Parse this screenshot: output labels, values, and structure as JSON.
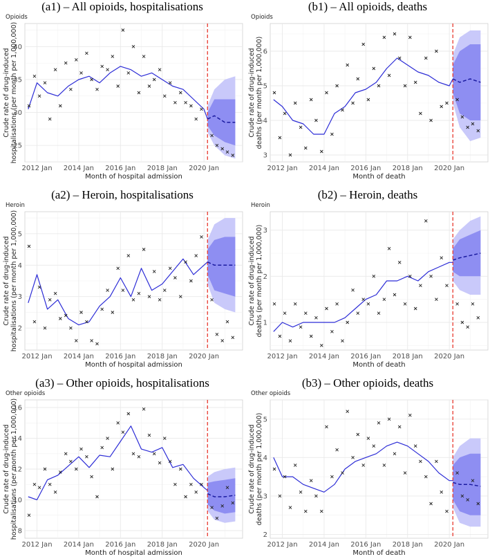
{
  "chart_data": [
    {
      "type": "line",
      "title": "(a1) – All opioids, hospitalisations",
      "subtitle": "Opioids",
      "xlabel": "Month of hospital admission",
      "ylabel": [
        "Crude rate of drug-induced",
        "hospitalisations (per month per 1,000,000)"
      ],
      "xlim": [
        2011.42,
        2021.85
      ],
      "ylim": [
        22.5,
        43.5
      ],
      "xticks": [
        2012,
        2014,
        2016,
        2018,
        2020
      ],
      "xtick_labels": [
        "2012 Jan",
        "2014 Jan",
        "2016 Jan",
        "2018 Jan",
        "2020 Jan"
      ],
      "yticks": [
        25,
        30,
        35,
        40
      ],
      "intervention_x": 2020.17,
      "fit_x": [
        2011.58,
        2012.0,
        2012.5,
        2013.0,
        2013.5,
        2014.0,
        2014.5,
        2015.0,
        2015.5,
        2016.0,
        2016.5,
        2017.0,
        2017.5,
        2018.0,
        2018.5,
        2019.0,
        2019.5,
        2020.0,
        2020.17
      ],
      "fit_y": [
        30.5,
        34.5,
        33.0,
        32.5,
        34.0,
        35.0,
        35.5,
        34.5,
        36.0,
        37.0,
        36.5,
        35.5,
        36.0,
        35.0,
        34.0,
        33.5,
        32.0,
        30.5,
        29.0
      ],
      "forecast_x": [
        2020.17,
        2020.5,
        2021.0,
        2021.5
      ],
      "forecast_y": [
        29.0,
        29.5,
        28.5,
        28.5
      ],
      "pi95_lower": [
        27.0,
        25.0,
        23.5,
        23.0
      ],
      "pi95_upper": [
        31.0,
        33.5,
        35.0,
        35.5
      ],
      "pi80_lower": [
        28.0,
        26.5,
        25.5,
        25.0
      ],
      "pi80_upper": [
        30.0,
        32.0,
        32.0,
        32.0
      ],
      "obs_x": [
        2011.62,
        2011.88,
        2012.12,
        2012.38,
        2012.62,
        2012.88,
        2013.12,
        2013.38,
        2013.62,
        2013.88,
        2014.12,
        2014.38,
        2014.62,
        2014.88,
        2015.12,
        2015.38,
        2015.62,
        2015.88,
        2016.12,
        2016.38,
        2016.62,
        2016.88,
        2017.12,
        2017.38,
        2017.62,
        2017.88,
        2018.12,
        2018.38,
        2018.62,
        2018.88,
        2019.12,
        2019.38,
        2019.62,
        2019.88,
        2020.38,
        2020.62,
        2020.88,
        2021.12,
        2021.38
      ],
      "obs_y": [
        31.0,
        35.5,
        32.5,
        34.5,
        29.0,
        36.5,
        31.0,
        37.5,
        33.5,
        38.0,
        36.0,
        39.0,
        35.0,
        33.5,
        37.0,
        36.5,
        38.5,
        34.0,
        42.5,
        36.0,
        40.0,
        33.0,
        38.5,
        34.0,
        35.0,
        36.5,
        32.5,
        34.5,
        31.5,
        33.0,
        31.5,
        31.0,
        29.0,
        30.5,
        26.5,
        25.0,
        24.5,
        24.0,
        23.5
      ],
      "colors": {
        "fit": "#2b2bd6",
        "pi80": "#8e8ef2",
        "pi95": "#c9c9fa",
        "vline": "#e8382d",
        "obs": "#222222",
        "grid": "#e9e9e9"
      }
    },
    {
      "type": "line",
      "title": "(b1) – All opioids, deaths",
      "subtitle": "Opioids",
      "xlabel": "Month of death",
      "ylabel": [
        "Crude rate of drug-induced",
        "deaths (per month per 1,000,000)"
      ],
      "xlim": [
        2011.42,
        2021.85
      ],
      "ylim": [
        2.8,
        6.8
      ],
      "xticks": [
        2012,
        2014,
        2016,
        2018,
        2020
      ],
      "xtick_labels": [
        "2012 Jan",
        "2014 Jan",
        "2016 Jan",
        "2018 Jan",
        "2020 Jan"
      ],
      "yticks": [
        3,
        4,
        5,
        6
      ],
      "intervention_x": 2020.17,
      "fit_x": [
        2011.58,
        2012.0,
        2012.5,
        2013.0,
        2013.5,
        2014.0,
        2014.5,
        2015.0,
        2015.5,
        2016.0,
        2016.5,
        2017.0,
        2017.5,
        2018.0,
        2018.5,
        2019.0,
        2019.5,
        2020.0,
        2020.17
      ],
      "fit_y": [
        4.6,
        4.4,
        4.0,
        3.9,
        3.6,
        3.6,
        4.2,
        4.4,
        4.8,
        4.9,
        5.1,
        5.5,
        5.8,
        5.6,
        5.4,
        5.3,
        5.1,
        5.0,
        5.2
      ],
      "forecast_x": [
        2020.17,
        2020.5,
        2021.0,
        2021.5
      ],
      "forecast_y": [
        5.2,
        5.1,
        5.2,
        5.1
      ],
      "pi95_lower": [
        4.5,
        3.8,
        3.4,
        3.5
      ],
      "pi95_upper": [
        5.9,
        6.4,
        6.6,
        6.6
      ],
      "pi80_lower": [
        4.8,
        4.2,
        4.0,
        4.0
      ],
      "pi80_upper": [
        5.6,
        6.0,
        6.2,
        6.2
      ],
      "obs_x": [
        2011.62,
        2011.88,
        2012.12,
        2012.38,
        2012.62,
        2012.88,
        2013.12,
        2013.38,
        2013.62,
        2013.88,
        2014.12,
        2014.38,
        2014.62,
        2014.88,
        2015.12,
        2015.38,
        2015.62,
        2015.88,
        2016.12,
        2016.38,
        2016.62,
        2016.88,
        2017.12,
        2017.38,
        2017.62,
        2017.88,
        2018.12,
        2018.38,
        2018.62,
        2018.88,
        2019.12,
        2019.38,
        2019.62,
        2019.88,
        2020.38,
        2020.62,
        2020.88,
        2021.12,
        2021.38
      ],
      "obs_y": [
        4.8,
        3.5,
        4.2,
        3.0,
        4.5,
        3.8,
        3.2,
        4.6,
        4.0,
        3.1,
        4.8,
        3.6,
        5.0,
        4.3,
        5.6,
        4.5,
        5.2,
        6.2,
        4.6,
        5.5,
        5.0,
        6.4,
        5.3,
        6.5,
        5.8,
        5.0,
        6.4,
        5.1,
        4.2,
        5.8,
        4.0,
        6.0,
        4.4,
        4.5,
        4.6,
        4.1,
        3.8,
        3.9,
        3.7
      ],
      "colors": {
        "fit": "#2b2bd6",
        "pi80": "#8e8ef2",
        "pi95": "#c9c9fa",
        "vline": "#e8382d",
        "obs": "#222222",
        "grid": "#e9e9e9"
      }
    },
    {
      "type": "line",
      "title": "(a2) – Heroin, hospitalisations",
      "subtitle": "Heroin",
      "xlabel": "Month of hospital admission",
      "ylabel": [
        "Crude rate of drug-induced",
        "hospitalisations (per month per 1,000,000)"
      ],
      "xlim": [
        2011.42,
        2021.85
      ],
      "ylim": [
        1.3,
        5.7
      ],
      "xticks": [
        2012,
        2014,
        2016,
        2018,
        2020
      ],
      "xtick_labels": [
        "2012 Jan",
        "2014 Jan",
        "2016 Jan",
        "2018 Jan",
        "2020 Jan"
      ],
      "yticks": [
        2,
        3,
        4,
        5
      ],
      "intervention_x": 2020.17,
      "fit_x": [
        2011.58,
        2012.0,
        2012.5,
        2013.0,
        2013.5,
        2014.0,
        2014.5,
        2015.0,
        2015.5,
        2016.0,
        2016.5,
        2017.0,
        2017.5,
        2018.0,
        2018.5,
        2019.0,
        2019.5,
        2020.0,
        2020.17
      ],
      "fit_y": [
        2.8,
        3.7,
        2.6,
        2.9,
        2.3,
        2.1,
        2.2,
        2.7,
        3.0,
        3.6,
        3.0,
        3.9,
        3.2,
        3.4,
        3.8,
        4.2,
        3.7,
        4.0,
        4.1
      ],
      "forecast_x": [
        2020.17,
        2020.5,
        2021.0,
        2021.5
      ],
      "forecast_y": [
        4.1,
        4.0,
        4.0,
        4.0
      ],
      "pi95_lower": [
        3.4,
        2.8,
        2.6,
        2.5
      ],
      "pi95_upper": [
        4.8,
        5.3,
        5.5,
        5.5
      ],
      "pi80_lower": [
        3.7,
        3.2,
        3.1,
        3.0
      ],
      "pi80_upper": [
        4.5,
        4.8,
        4.9,
        4.9
      ],
      "obs_x": [
        2011.62,
        2011.88,
        2012.12,
        2012.38,
        2012.62,
        2012.88,
        2013.12,
        2013.38,
        2013.62,
        2013.88,
        2014.12,
        2014.38,
        2014.62,
        2014.88,
        2015.12,
        2015.38,
        2015.62,
        2015.88,
        2016.12,
        2016.38,
        2016.62,
        2016.88,
        2017.12,
        2017.38,
        2017.62,
        2017.88,
        2018.12,
        2018.38,
        2018.62,
        2018.88,
        2019.12,
        2019.38,
        2019.62,
        2019.88,
        2020.38,
        2020.62,
        2020.88,
        2021.12,
        2021.38
      ],
      "obs_y": [
        4.6,
        2.2,
        3.3,
        2.0,
        2.9,
        3.1,
        2.3,
        2.4,
        2.0,
        1.6,
        2.5,
        2.2,
        1.6,
        1.5,
        2.6,
        3.2,
        2.5,
        3.9,
        3.2,
        4.3,
        2.9,
        3.1,
        4.5,
        3.0,
        3.8,
        2.9,
        3.2,
        3.9,
        3.6,
        3.0,
        4.1,
        3.5,
        4.3,
        4.9,
        2.9,
        1.8,
        1.6,
        2.2,
        1.7
      ],
      "colors": {
        "fit": "#2b2bd6",
        "pi80": "#8e8ef2",
        "pi95": "#c9c9fa",
        "vline": "#e8382d",
        "obs": "#222222",
        "grid": "#e9e9e9"
      }
    },
    {
      "type": "line",
      "title": "(b2) – Heroin, deaths",
      "subtitle": "Heroin",
      "xlabel": "Month of death",
      "ylabel": [
        "Crude rate of drug-induced",
        "deaths (per month per 1,000,000)"
      ],
      "xlim": [
        2011.42,
        2021.85
      ],
      "ylim": [
        0.4,
        3.4
      ],
      "xticks": [
        2012,
        2014,
        2016,
        2018,
        2020
      ],
      "xtick_labels": [
        "2012 Jan",
        "2014 Jan",
        "2016 Jan",
        "2018 Jan",
        "2020 Jan"
      ],
      "yticks": [
        1,
        2,
        3
      ],
      "intervention_x": 2020.17,
      "fit_x": [
        2011.58,
        2012.0,
        2012.5,
        2013.0,
        2013.5,
        2014.0,
        2014.5,
        2015.0,
        2015.5,
        2016.0,
        2016.5,
        2017.0,
        2017.5,
        2018.0,
        2018.5,
        2019.0,
        2019.5,
        2020.0,
        2020.17
      ],
      "fit_y": [
        0.8,
        1.0,
        0.9,
        1.0,
        1.0,
        1.0,
        1.0,
        1.1,
        1.3,
        1.5,
        1.6,
        1.9,
        1.9,
        2.0,
        1.9,
        2.1,
        2.2,
        2.3,
        2.3
      ],
      "forecast_x": [
        2020.17,
        2020.5,
        2021.0,
        2021.5
      ],
      "forecast_y": [
        2.35,
        2.4,
        2.45,
        2.5
      ],
      "pi95_lower": [
        1.9,
        1.7,
        1.6,
        1.6
      ],
      "pi95_upper": [
        2.8,
        3.0,
        3.2,
        3.3
      ],
      "pi80_lower": [
        2.1,
        2.0,
        2.0,
        2.0
      ],
      "pi80_upper": [
        2.6,
        2.8,
        2.9,
        3.0
      ],
      "obs_x": [
        2011.62,
        2011.88,
        2012.12,
        2012.38,
        2012.62,
        2012.88,
        2013.12,
        2013.38,
        2013.62,
        2013.88,
        2014.12,
        2014.38,
        2014.62,
        2014.88,
        2015.12,
        2015.38,
        2015.62,
        2015.88,
        2016.12,
        2016.38,
        2016.62,
        2016.88,
        2017.12,
        2017.38,
        2017.62,
        2017.88,
        2018.12,
        2018.38,
        2018.62,
        2018.88,
        2019.12,
        2019.38,
        2019.62,
        2019.88,
        2020.38,
        2020.62,
        2020.88,
        2021.12,
        2021.38
      ],
      "obs_y": [
        1.4,
        0.7,
        1.2,
        0.6,
        1.4,
        0.9,
        1.2,
        0.7,
        1.1,
        0.5,
        1.3,
        0.8,
        1.4,
        0.6,
        1.0,
        1.7,
        1.2,
        1.5,
        1.4,
        2.0,
        1.2,
        1.5,
        2.6,
        1.6,
        2.3,
        1.4,
        2.0,
        1.3,
        1.8,
        3.2,
        2.0,
        1.5,
        2.4,
        1.8,
        1.4,
        1.0,
        0.9,
        1.4,
        1.1
      ],
      "colors": {
        "fit": "#2b2bd6",
        "pi80": "#8e8ef2",
        "pi95": "#c9c9fa",
        "vline": "#e8382d",
        "obs": "#222222",
        "grid": "#e9e9e9"
      }
    },
    {
      "type": "line",
      "title": "(a3) – Other opioids, hospitalisations",
      "subtitle": "Other opioids",
      "xlabel": "Month of hospital admission",
      "ylabel": [
        "Crude rate of drug-induced",
        "hospitalisations (per month per 1,000,000)"
      ],
      "xlim": [
        2011.42,
        2021.85
      ],
      "ylim": [
        7.5,
        16.5
      ],
      "xticks": [
        2012,
        2014,
        2016,
        2018,
        2020
      ],
      "xtick_labels": [
        "2012 Jan",
        "2014 Jan",
        "2016 Jan",
        "2018 Jan",
        "2020 Jan"
      ],
      "yticks": [
        8,
        10,
        12,
        14,
        16
      ],
      "intervention_x": 2020.17,
      "fit_x": [
        2011.58,
        2012.0,
        2012.5,
        2013.0,
        2013.5,
        2014.0,
        2014.5,
        2015.0,
        2015.5,
        2016.0,
        2016.5,
        2017.0,
        2017.5,
        2018.0,
        2018.5,
        2019.0,
        2019.5,
        2020.0,
        2020.17
      ],
      "fit_y": [
        10.2,
        10.0,
        11.3,
        11.6,
        12.2,
        12.8,
        12.1,
        12.9,
        12.8,
        13.8,
        14.8,
        13.3,
        13.1,
        13.4,
        12.1,
        12.3,
        11.4,
        10.8,
        10.6
      ],
      "forecast_x": [
        2020.17,
        2020.5,
        2021.0,
        2021.5
      ],
      "forecast_y": [
        10.4,
        10.2,
        10.2,
        10.3
      ],
      "pi95_lower": [
        9.3,
        8.7,
        8.5,
        8.6
      ],
      "pi95_upper": [
        11.5,
        11.8,
        12.0,
        12.1
      ],
      "pi80_lower": [
        9.7,
        9.3,
        9.1,
        9.2
      ],
      "pi80_upper": [
        11.1,
        11.2,
        11.3,
        11.4
      ],
      "obs_x": [
        2011.62,
        2011.88,
        2012.12,
        2012.38,
        2012.62,
        2012.88,
        2013.12,
        2013.38,
        2013.62,
        2013.88,
        2014.12,
        2014.38,
        2014.62,
        2014.88,
        2015.12,
        2015.38,
        2015.62,
        2015.88,
        2016.12,
        2016.38,
        2016.62,
        2016.88,
        2017.12,
        2017.38,
        2017.62,
        2017.88,
        2018.12,
        2018.38,
        2018.62,
        2018.88,
        2019.12,
        2019.38,
        2019.62,
        2019.88,
        2020.38,
        2020.62,
        2020.88,
        2021.12,
        2021.38
      ],
      "obs_y": [
        9.0,
        11.0,
        10.8,
        12.0,
        11.0,
        10.5,
        11.8,
        13.0,
        12.5,
        12.0,
        13.3,
        12.8,
        11.5,
        10.2,
        13.4,
        14.0,
        12.0,
        15.0,
        14.4,
        15.6,
        13.0,
        12.8,
        15.9,
        14.2,
        13.0,
        12.4,
        14.0,
        12.5,
        11.0,
        12.0,
        10.2,
        11.0,
        10.5,
        11.0,
        9.5,
        8.8,
        9.6,
        10.8,
        9.8
      ],
      "colors": {
        "fit": "#2b2bd6",
        "pi80": "#8e8ef2",
        "pi95": "#c9c9fa",
        "vline": "#e8382d",
        "obs": "#222222",
        "grid": "#e9e9e9"
      }
    },
    {
      "type": "line",
      "title": "(b3) – Other opioids, deaths",
      "subtitle": "Other opioids",
      "xlabel": "Month of death",
      "ylabel": [
        "Crude rate of drug-induced",
        "deaths (per month per 1,000,000)"
      ],
      "xlim": [
        2011.42,
        2021.85
      ],
      "ylim": [
        1.9,
        5.5
      ],
      "xticks": [
        2012,
        2014,
        2016,
        2018,
        2020
      ],
      "xtick_labels": [
        "2012 Jan",
        "2014 Jan",
        "2016 Jan",
        "2018 Jan",
        "2020 Jan"
      ],
      "yticks": [
        2,
        3,
        4,
        5
      ],
      "intervention_x": 2020.17,
      "fit_x": [
        2011.58,
        2012.0,
        2012.5,
        2013.0,
        2013.5,
        2014.0,
        2014.5,
        2015.0,
        2015.5,
        2016.0,
        2016.5,
        2017.0,
        2017.5,
        2018.0,
        2018.5,
        2019.0,
        2019.5,
        2020.0,
        2020.17
      ],
      "fit_y": [
        4.0,
        3.5,
        3.5,
        3.3,
        3.2,
        3.1,
        3.3,
        3.7,
        3.9,
        4.0,
        4.1,
        4.3,
        4.4,
        4.3,
        4.1,
        3.9,
        3.6,
        3.4,
        3.4
      ],
      "forecast_x": [
        2020.17,
        2020.5,
        2021.0,
        2021.5
      ],
      "forecast_y": [
        3.35,
        3.3,
        3.3,
        3.25
      ],
      "pi95_lower": [
        2.7,
        2.3,
        2.2,
        2.2
      ],
      "pi95_upper": [
        4.0,
        4.3,
        4.5,
        4.5
      ],
      "pi80_lower": [
        2.9,
        2.6,
        2.5,
        2.5
      ],
      "pi80_upper": [
        3.8,
        4.0,
        4.1,
        4.1
      ],
      "obs_x": [
        2011.62,
        2011.88,
        2012.12,
        2012.38,
        2012.62,
        2012.88,
        2013.12,
        2013.38,
        2013.62,
        2013.88,
        2014.12,
        2014.38,
        2014.62,
        2014.88,
        2015.12,
        2015.38,
        2015.62,
        2015.88,
        2016.12,
        2016.38,
        2016.62,
        2016.88,
        2017.12,
        2017.38,
        2017.62,
        2017.88,
        2018.12,
        2018.38,
        2018.62,
        2018.88,
        2019.12,
        2019.38,
        2019.62,
        2019.88,
        2020.38,
        2020.62,
        2020.88,
        2021.12,
        2021.38
      ],
      "obs_y": [
        3.7,
        3.0,
        3.5,
        2.7,
        3.8,
        3.1,
        2.6,
        3.4,
        3.0,
        2.6,
        4.8,
        3.5,
        4.2,
        3.6,
        5.2,
        4.0,
        4.6,
        3.8,
        4.5,
        4.3,
        4.9,
        3.8,
        5.0,
        4.1,
        4.8,
        3.6,
        5.1,
        4.3,
        3.9,
        3.5,
        2.8,
        3.9,
        3.1,
        2.6,
        3.6,
        3.0,
        2.9,
        3.4,
        2.8
      ],
      "colors": {
        "fit": "#2b2bd6",
        "pi80": "#8e8ef2",
        "pi95": "#c9c9fa",
        "vline": "#e8382d",
        "obs": "#222222",
        "grid": "#e9e9e9"
      }
    }
  ]
}
